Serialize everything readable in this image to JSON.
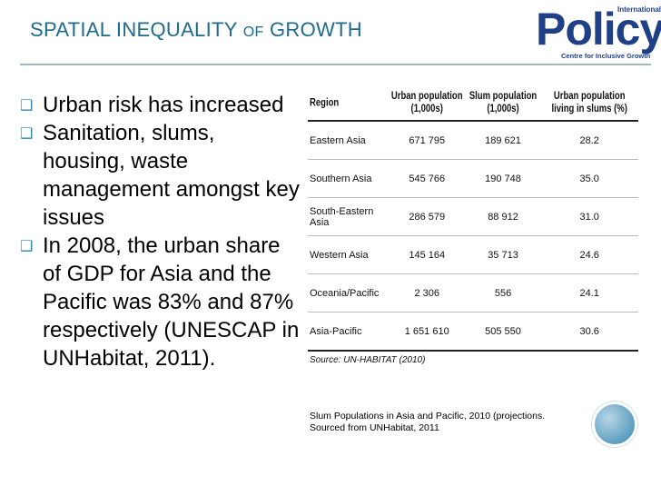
{
  "slide": {
    "title_part1": "SPATIAL INEQUALITY ",
    "title_small": "OF",
    "title_part2": " GROWTH",
    "accent_color": "#1e6b8e",
    "bullet_color": "#2d86b2"
  },
  "logo": {
    "international": "International",
    "name": "Policy",
    "tagline": "Centre for Inclusive Growth"
  },
  "bullets": [
    {
      "marker": "❑",
      "text": "Urban risk has increased"
    },
    {
      "marker": "❑",
      "text": "Sanitation, slums, housing, waste management amongst key issues"
    },
    {
      "marker": "❑",
      "text": "In 2008, the urban share of GDP for Asia and the Pacific was 83% and 87% respectively (UNESCAP in UNHabitat, 2011)."
    }
  ],
  "table": {
    "headers": [
      "Region",
      "Urban population (1,000s)",
      "Slum population (1,000s)",
      "Urban population living in slums (%)"
    ],
    "rows": [
      [
        "Eastern Asia",
        "671 795",
        "189 621",
        "28.2"
      ],
      [
        "Southern Asia",
        "545 766",
        "190 748",
        "35.0"
      ],
      [
        "South-Eastern Asia",
        "286 579",
        "88 912",
        "31.0"
      ],
      [
        "Western Asia",
        "145 164",
        "35 713",
        "24.6"
      ],
      [
        "Oceania/Pacific",
        "2 306",
        "556",
        "24.1"
      ],
      [
        "Asia-Pacific",
        "1 651 610",
        "505 550",
        "30.6"
      ]
    ],
    "source": "Source: UN-HABITAT (2010)"
  },
  "caption": {
    "line1": "Slum Populations in Asia and Pacific, 2010 (projections.",
    "line2": "Sourced from UNHabitat, 2011"
  }
}
